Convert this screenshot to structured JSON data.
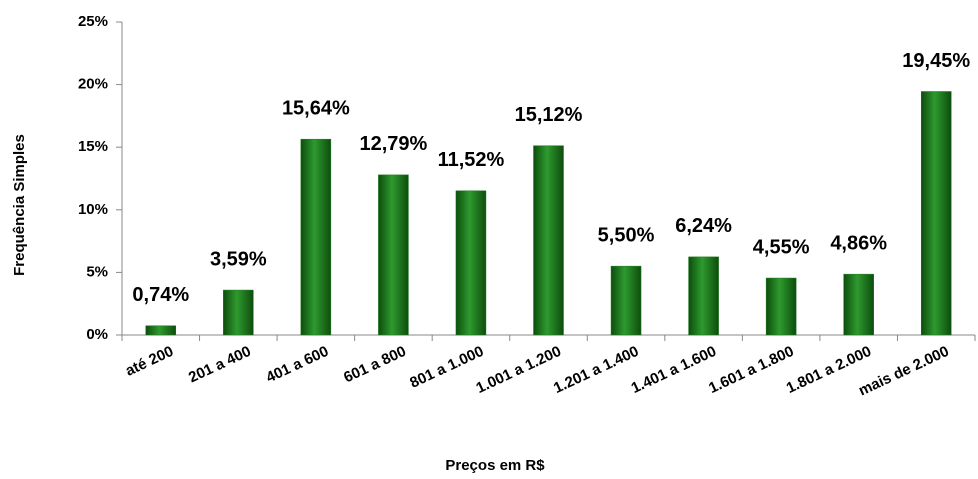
{
  "chart_data": {
    "type": "bar",
    "x_label": "Preços em R$",
    "y_label": "Frequência Simples",
    "categories": [
      "até 200",
      "201 a 400",
      "401 a 600",
      "601 a 800",
      "801 a 1.000",
      "1.001 a 1.200",
      "1.201 a 1.400",
      "1.401 a 1.600",
      "1.601 a 1.800",
      "1.801 a 2.000",
      "mais de 2.000"
    ],
    "values": [
      0.74,
      3.59,
      15.64,
      12.79,
      11.52,
      15.12,
      5.5,
      6.24,
      4.55,
      4.86,
      19.45
    ],
    "value_labels": [
      "0,74%",
      "3,59%",
      "15,64%",
      "12,79%",
      "11,52%",
      "15,12%",
      "5,50%",
      "6,24%",
      "4,55%",
      "4,86%",
      "19,45%"
    ],
    "color": "#1e7a1e",
    "ylim": [
      0,
      25
    ],
    "yticks": [
      {
        "value": 0,
        "label": "0%"
      },
      {
        "value": 5,
        "label": "5%"
      },
      {
        "value": 10,
        "label": "10%"
      },
      {
        "value": 15,
        "label": "15%"
      },
      {
        "value": 20,
        "label": "20%"
      },
      {
        "value": 25,
        "label": "25%"
      }
    ],
    "grid": false
  }
}
